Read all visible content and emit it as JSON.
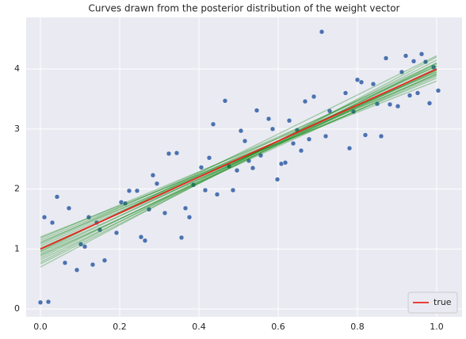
{
  "chart_data": {
    "type": "scatter",
    "title": "Curves drawn from the posterior distribution of the weight vector",
    "xlim": [
      -0.036,
      1.064
    ],
    "ylim": [
      -0.13,
      4.86
    ],
    "xticks": [
      {
        "value": 0,
        "label": "0.0"
      },
      {
        "value": 0.2,
        "label": "0.2"
      },
      {
        "value": 0.4,
        "label": "0.4"
      },
      {
        "value": 0.6,
        "label": "0.6"
      },
      {
        "value": 0.8,
        "label": "0.8"
      },
      {
        "value": 1,
        "label": "1.0"
      }
    ],
    "yticks": [
      0,
      1,
      2,
      3,
      4
    ],
    "grid": true,
    "legend": "lower right",
    "points": {
      "color": "#4c72b0",
      "x": [
        0.0,
        0.01,
        0.02,
        0.03,
        0.042,
        0.062,
        0.072,
        0.092,
        0.102,
        0.112,
        0.122,
        0.132,
        0.142,
        0.15,
        0.162,
        0.192,
        0.204,
        0.214,
        0.224,
        0.244,
        0.254,
        0.264,
        0.274,
        0.284,
        0.294,
        0.314,
        0.324,
        0.344,
        0.356,
        0.366,
        0.376,
        0.386,
        0.406,
        0.416,
        0.426,
        0.436,
        0.446,
        0.466,
        0.476,
        0.486,
        0.496,
        0.506,
        0.516,
        0.526,
        0.536,
        0.546,
        0.556,
        0.576,
        0.586,
        0.598,
        0.608,
        0.618,
        0.628,
        0.638,
        0.648,
        0.658,
        0.668,
        0.678,
        0.69,
        0.71,
        0.72,
        0.73,
        0.77,
        0.78,
        0.79,
        0.8,
        0.81,
        0.82,
        0.84,
        0.85,
        0.86,
        0.872,
        0.882,
        0.902,
        0.912,
        0.922,
        0.932,
        0.942,
        0.952,
        0.962,
        0.972,
        0.982,
        0.992,
        1.004
      ],
      "y": [
        0.11,
        1.53,
        0.12,
        1.44,
        1.87,
        0.77,
        1.68,
        0.65,
        1.08,
        1.04,
        1.53,
        0.74,
        1.44,
        1.32,
        0.81,
        1.27,
        1.78,
        1.76,
        1.97,
        1.97,
        1.2,
        1.14,
        1.66,
        2.23,
        2.09,
        1.6,
        2.59,
        2.6,
        1.19,
        1.68,
        1.53,
        2.07,
        2.36,
        1.98,
        2.52,
        3.08,
        1.91,
        3.47,
        2.38,
        1.98,
        2.31,
        2.97,
        2.8,
        2.47,
        2.35,
        3.31,
        2.56,
        3.17,
        3.0,
        2.16,
        2.42,
        2.44,
        3.14,
        2.76,
        2.98,
        2.64,
        3.46,
        2.83,
        3.54,
        4.62,
        2.88,
        3.3,
        3.6,
        2.68,
        3.29,
        3.82,
        3.78,
        2.9,
        3.75,
        3.42,
        2.88,
        4.18,
        3.41,
        3.38,
        3.95,
        4.22,
        3.56,
        4.13,
        3.6,
        4.25,
        4.12,
        3.43,
        4.03,
        3.64
      ]
    },
    "series": [
      {
        "color": "green",
        "x": [
          0,
          1
        ],
        "values": [
          0.95,
          3.98
        ]
      },
      {
        "color": "green",
        "x": [
          0,
          1
        ],
        "values": [
          1.05,
          3.92
        ]
      },
      {
        "color": "green",
        "x": [
          0,
          1
        ],
        "values": [
          0.85,
          4.08
        ]
      },
      {
        "color": "green",
        "x": [
          0,
          1
        ],
        "values": [
          1.12,
          3.85
        ]
      },
      {
        "color": "green",
        "x": [
          0,
          1
        ],
        "values": [
          0.78,
          4.15
        ]
      },
      {
        "color": "green",
        "x": [
          0,
          1
        ],
        "values": [
          1.0,
          4.0
        ]
      },
      {
        "color": "green",
        "x": [
          0,
          1
        ],
        "values": [
          0.92,
          4.05
        ]
      },
      {
        "color": "green",
        "x": [
          0,
          1
        ],
        "values": [
          1.08,
          3.95
        ]
      },
      {
        "color": "green",
        "x": [
          0,
          1
        ],
        "values": [
          0.88,
          3.98
        ]
      },
      {
        "color": "green",
        "x": [
          0,
          1
        ],
        "values": [
          1.15,
          3.9
        ]
      },
      {
        "color": "green",
        "x": [
          0,
          1
        ],
        "values": [
          0.7,
          4.2
        ]
      },
      {
        "color": "green",
        "x": [
          0,
          1
        ],
        "values": [
          1.2,
          3.8
        ]
      },
      {
        "color": "green",
        "x": [
          0,
          1
        ],
        "values": [
          0.98,
          4.1
        ]
      },
      {
        "color": "green",
        "x": [
          0,
          1
        ],
        "values": [
          1.02,
          3.88
        ]
      },
      {
        "color": "green",
        "x": [
          0,
          1
        ],
        "values": [
          0.82,
          4.02
        ]
      },
      {
        "color": "green",
        "x": [
          0,
          1
        ],
        "values": [
          1.1,
          4.05
        ]
      },
      {
        "color": "green",
        "x": [
          0,
          1
        ],
        "values": [
          0.9,
          3.92
        ]
      },
      {
        "color": "green",
        "x": [
          0,
          1
        ],
        "values": [
          0.75,
          4.1
        ]
      },
      {
        "color": "green",
        "x": [
          0,
          1
        ],
        "values": [
          1.18,
          3.95
        ]
      },
      {
        "color": "green",
        "x": [
          0,
          1
        ],
        "values": [
          0.96,
          4.22
        ]
      },
      {
        "name": "true",
        "color": "#e8261d",
        "x": [
          0,
          1
        ],
        "values": [
          1,
          4
        ]
      }
    ]
  }
}
